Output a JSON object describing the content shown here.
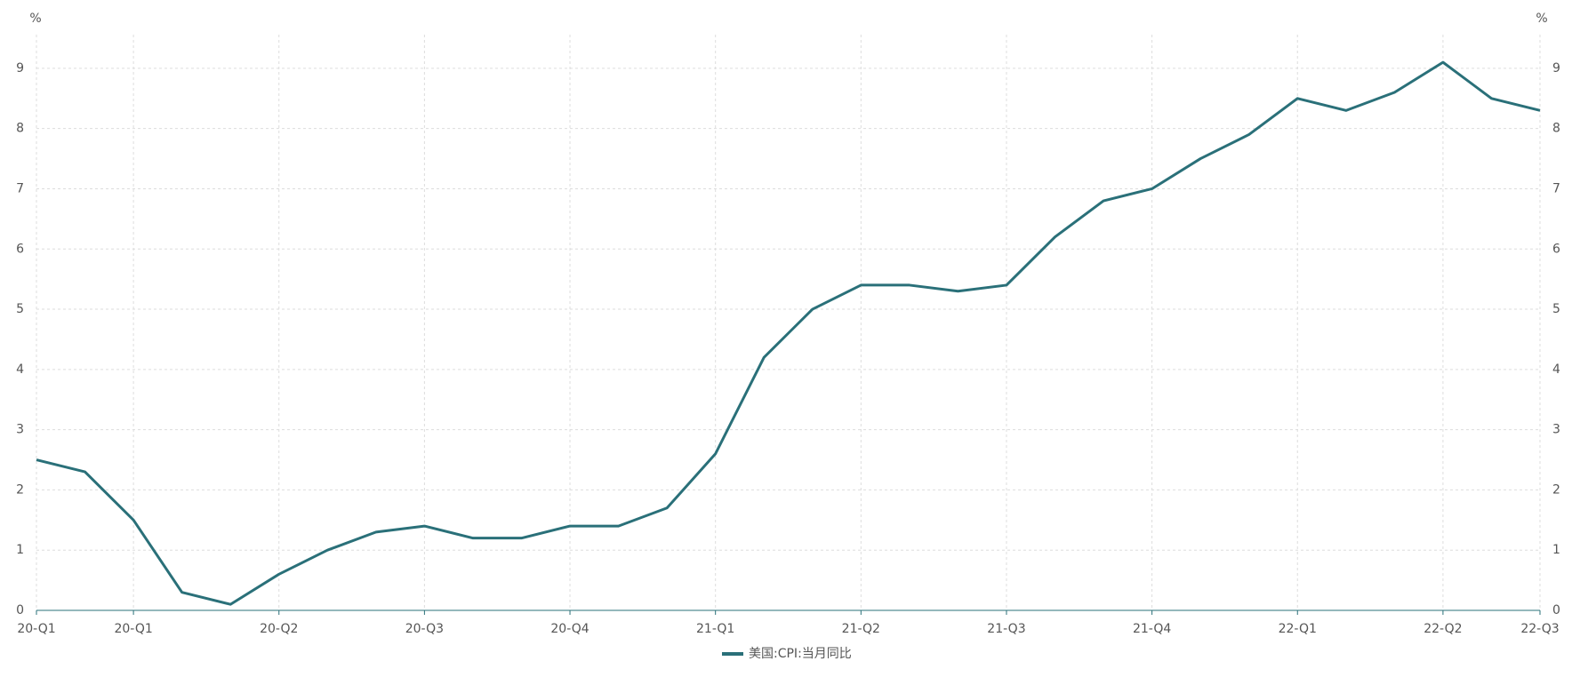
{
  "chart_data": {
    "type": "line",
    "categories": [
      "20-Q1",
      null,
      "20-Q1",
      null,
      null,
      "20-Q2",
      null,
      null,
      "20-Q3",
      null,
      null,
      "20-Q4",
      null,
      null,
      "21-Q1",
      null,
      null,
      "21-Q2",
      null,
      null,
      "21-Q3",
      null,
      null,
      "21-Q4",
      null,
      null,
      "22-Q1",
      null,
      null,
      "22-Q2",
      null,
      "22-Q3"
    ],
    "series": [
      {
        "name": "美国:CPI:当月同比",
        "color": "#2a7079",
        "values": [
          2.5,
          2.3,
          1.5,
          0.3,
          0.1,
          0.6,
          1.0,
          1.3,
          1.4,
          1.2,
          1.2,
          1.4,
          1.4,
          1.7,
          2.6,
          4.2,
          5.0,
          5.4,
          5.4,
          5.3,
          5.4,
          6.2,
          6.8,
          7.0,
          7.5,
          7.9,
          8.5,
          8.3,
          8.6,
          9.1,
          8.5,
          8.3
        ]
      }
    ],
    "y_unit": "%",
    "y2_unit": "%",
    "ylim": [
      0,
      9.5
    ],
    "yticks": [
      0,
      1,
      2,
      3,
      4,
      5,
      6,
      7,
      8,
      9
    ],
    "y2lim": [
      0,
      9.5
    ],
    "y2ticks": [
      0,
      1,
      2,
      3,
      4,
      5,
      6,
      7,
      8,
      9
    ],
    "grid": true,
    "legend": "bottom"
  }
}
